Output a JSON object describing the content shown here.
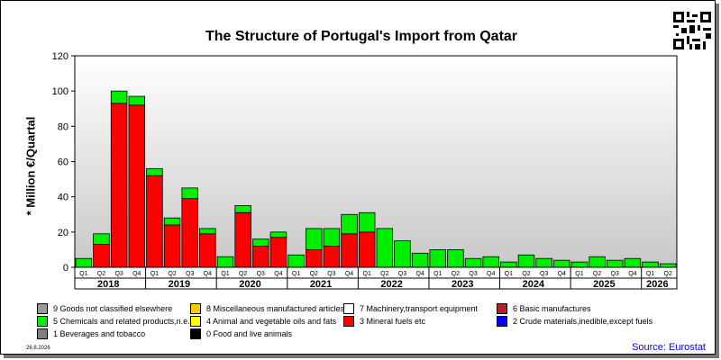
{
  "title": "The Structure of Portugal's Import from Qatar",
  "date": "26.8.2026",
  "source": "Source: Eurostat",
  "legend": [
    {
      "label": "9 Goods not classified elsewhere",
      "color": "#999999"
    },
    {
      "label": "8 Miscellaneous manufactured articles",
      "color": "#ffcc00"
    },
    {
      "label": "7 Machinery,transport equipment",
      "color": "#ffffff"
    },
    {
      "label": "6 Basic manufactures",
      "color": "#b22222"
    },
    {
      "label": "5 Chemicals and related products,n.e.s.",
      "color": "#00ee00"
    },
    {
      "label": "4 Animal and vegetable oils and fats",
      "color": "#ffff00"
    },
    {
      "label": "3 Mineral fuels etc",
      "color": "#ff0000"
    },
    {
      "label": "2 Crude materials,inedible,except fuels",
      "color": "#0000ff"
    },
    {
      "label": "1 Beverages and tobacco",
      "color": "#808080"
    },
    {
      "label": "0 Food and live animals",
      "color": "#000000"
    }
  ],
  "chart_data": {
    "type": "bar",
    "stacked": true,
    "ylabel": "* Million €/Quartal",
    "ylim": [
      0,
      120
    ],
    "yticks": [
      0,
      20,
      40,
      60,
      80,
      100,
      120
    ],
    "grid": false,
    "categories": [
      "Q1",
      "Q2",
      "Q3",
      "Q4",
      "Q1",
      "Q2",
      "Q3",
      "Q4",
      "Q1",
      "Q2",
      "Q3",
      "Q4",
      "Q1",
      "Q2",
      "Q3",
      "Q4",
      "Q1",
      "Q2",
      "Q3",
      "Q4",
      "Q1",
      "Q2",
      "Q3",
      "Q4",
      "Q1",
      "Q2",
      "Q3",
      "Q4",
      "Q1",
      "Q2",
      "Q3",
      "Q4",
      "Q1",
      "Q2"
    ],
    "years": [
      {
        "label": "2018",
        "quarters": 4
      },
      {
        "label": "2019",
        "quarters": 4
      },
      {
        "label": "2020",
        "quarters": 4
      },
      {
        "label": "2021",
        "quarters": 4
      },
      {
        "label": "2022",
        "quarters": 4
      },
      {
        "label": "2023",
        "quarters": 4
      },
      {
        "label": "2024",
        "quarters": 4
      },
      {
        "label": "2025",
        "quarters": 4
      },
      {
        "label": "2026",
        "quarters": 2
      }
    ],
    "series": [
      {
        "name": "3 Mineral fuels etc",
        "color": "#ff0000",
        "values": [
          0,
          13,
          93,
          92,
          52,
          24,
          39,
          19,
          0,
          31,
          12,
          17,
          0,
          10,
          12,
          19,
          20,
          0,
          0,
          0,
          0,
          0,
          0,
          0,
          0,
          0,
          0,
          0,
          0,
          0,
          0,
          0,
          0,
          0
        ]
      },
      {
        "name": "5 Chemicals and related products,n.e.s.",
        "color": "#00ee00",
        "values": [
          5,
          6,
          7,
          5,
          4,
          4,
          6,
          3,
          6,
          4,
          4,
          3,
          7,
          12,
          10,
          11,
          11,
          22,
          15,
          8,
          10,
          10,
          5,
          6,
          3,
          7,
          5,
          4,
          3,
          6,
          4,
          5,
          3,
          2
        ]
      }
    ]
  }
}
